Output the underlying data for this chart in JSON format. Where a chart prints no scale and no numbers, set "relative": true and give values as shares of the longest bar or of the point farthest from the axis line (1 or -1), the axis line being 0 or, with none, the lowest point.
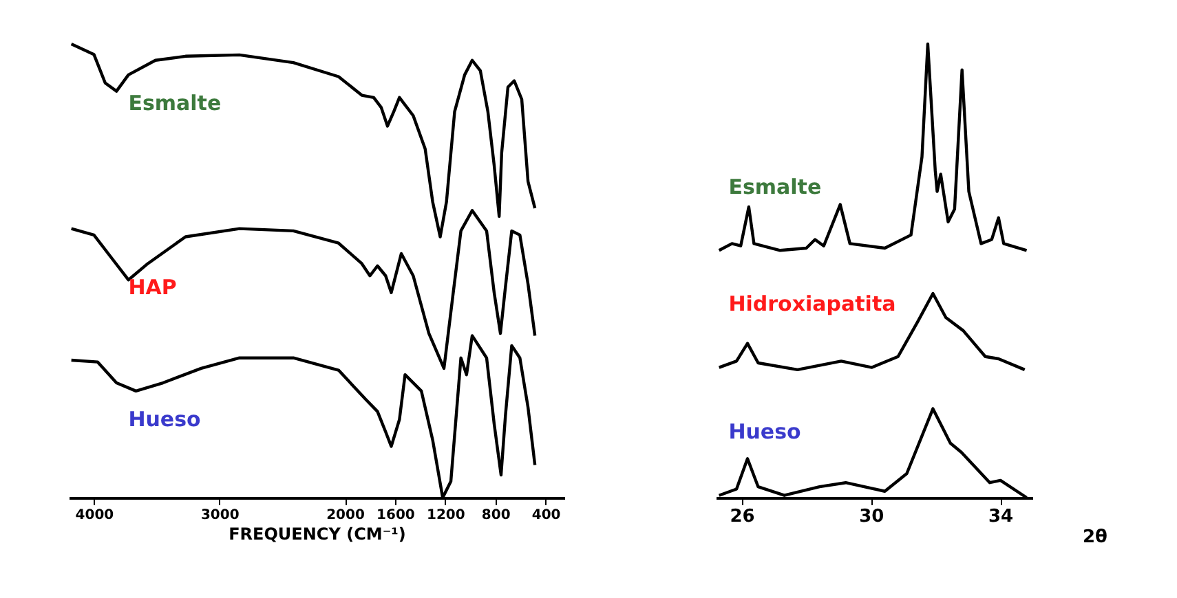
{
  "chart_data": [
    {
      "type": "line",
      "relative": true,
      "xlabel": "FREQUENCY (CM⁻¹)",
      "xlim": [
        4200,
        250
      ],
      "xticks": [
        4000,
        3000,
        2000,
        1600,
        1200,
        800,
        400
      ],
      "series": [
        {
          "name": "Esmalte",
          "color": "#000000",
          "x": [
            4180,
            4000,
            3910,
            3820,
            3725,
            3510,
            3270,
            2840,
            2410,
            2050,
            1865,
            1770,
            1710,
            1660,
            1610,
            1565,
            1455,
            1360,
            1300,
            1240,
            1190,
            1125,
            1045,
            985,
            920,
            860,
            810,
            770,
            750,
            700,
            650,
            590,
            540,
            485
          ],
          "values": [
            1.0,
            0.977,
            0.914,
            0.896,
            0.932,
            0.964,
            0.973,
            0.976,
            0.959,
            0.928,
            0.887,
            0.882,
            0.86,
            0.819,
            0.851,
            0.882,
            0.842,
            0.769,
            0.652,
            0.575,
            0.652,
            0.851,
            0.932,
            0.964,
            0.941,
            0.851,
            0.733,
            0.62,
            0.76,
            0.905,
            0.919,
            0.878,
            0.697,
            0.638
          ]
        },
        {
          "name": "HAP",
          "color": "#000000",
          "x": [
            4180,
            4000,
            3850,
            3725,
            3570,
            3270,
            2840,
            2410,
            2050,
            1865,
            1800,
            1740,
            1675,
            1630,
            1550,
            1455,
            1330,
            1210,
            1140,
            1075,
            985,
            870,
            810,
            760,
            725,
            670,
            605,
            540,
            485
          ],
          "values": [
            0.593,
            0.579,
            0.525,
            0.48,
            0.516,
            0.575,
            0.593,
            0.588,
            0.561,
            0.516,
            0.489,
            0.511,
            0.489,
            0.452,
            0.538,
            0.489,
            0.362,
            0.285,
            0.443,
            0.588,
            0.633,
            0.588,
            0.452,
            0.362,
            0.452,
            0.588,
            0.579,
            0.471,
            0.357
          ]
        },
        {
          "name": "Hueso",
          "color": "#000000",
          "x": [
            4180,
            3970,
            3820,
            3665,
            3450,
            3145,
            2840,
            2410,
            2050,
            1835,
            1740,
            1675,
            1630,
            1565,
            1520,
            1390,
            1300,
            1220,
            1155,
            1115,
            1075,
            1030,
            985,
            870,
            810,
            755,
            720,
            670,
            605,
            540,
            485
          ],
          "values": [
            0.303,
            0.299,
            0.253,
            0.235,
            0.253,
            0.285,
            0.308,
            0.308,
            0.281,
            0.217,
            0.19,
            0.145,
            0.113,
            0.172,
            0.271,
            0.235,
            0.127,
            0.0,
            0.036,
            0.172,
            0.308,
            0.271,
            0.357,
            0.308,
            0.163,
            0.05,
            0.181,
            0.335,
            0.308,
            0.199,
            0.072
          ]
        }
      ]
    },
    {
      "type": "line",
      "relative": true,
      "xlabel": "2θ",
      "xlim": [
        25.2,
        35.0
      ],
      "xticks": [
        26,
        30,
        34
      ],
      "series": [
        {
          "name": "Esmalte",
          "color": "#000000",
          "x": [
            25.3,
            25.7,
            25.97,
            26.22,
            26.38,
            27.19,
            28.0,
            28.27,
            28.54,
            29.05,
            29.35,
            30.43,
            31.24,
            31.58,
            31.76,
            31.99,
            32.05,
            32.16,
            32.39,
            32.59,
            32.82,
            33.03,
            33.41,
            33.74,
            33.95,
            34.11,
            34.82
          ],
          "values": [
            0.545,
            0.56,
            0.555,
            0.641,
            0.56,
            0.545,
            0.55,
            0.569,
            0.555,
            0.646,
            0.56,
            0.55,
            0.579,
            0.751,
            1.0,
            0.722,
            0.675,
            0.713,
            0.608,
            0.636,
            0.943,
            0.675,
            0.56,
            0.569,
            0.617,
            0.56,
            0.545
          ]
        },
        {
          "name": "Hidroxiapatita",
          "color": "#000000",
          "x": [
            25.3,
            25.84,
            26.18,
            26.51,
            27.73,
            29.08,
            30.03,
            30.84,
            31.45,
            31.92,
            32.32,
            32.86,
            33.54,
            33.95,
            34.76
          ],
          "values": [
            0.287,
            0.301,
            0.34,
            0.297,
            0.282,
            0.301,
            0.287,
            0.311,
            0.388,
            0.45,
            0.397,
            0.368,
            0.311,
            0.306,
            0.282
          ]
        },
        {
          "name": "Hueso",
          "color": "#000000",
          "x": [
            25.3,
            25.84,
            26.18,
            26.51,
            27.32,
            28.41,
            29.22,
            30.43,
            31.11,
            31.92,
            32.46,
            32.8,
            33.68,
            34.01,
            34.82
          ],
          "values": [
            0.005,
            0.019,
            0.086,
            0.024,
            0.005,
            0.024,
            0.033,
            0.014,
            0.053,
            0.196,
            0.12,
            0.1,
            0.033,
            0.038,
            0.0
          ]
        }
      ]
    }
  ]
}
